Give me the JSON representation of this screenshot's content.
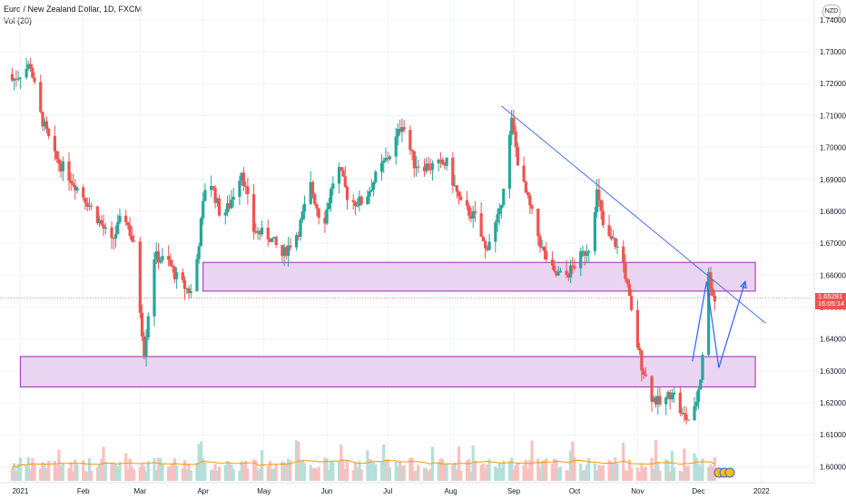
{
  "header": {
    "title": "Euro / New Zealand Dollar, 1D, FXCM",
    "indicator": "Vol (20)"
  },
  "currency_badge": "NZD",
  "last_price": "1.65281",
  "countdown": "16:05:14",
  "colors": {
    "up": "#26a69a",
    "down": "#ef5350",
    "vol_up": "#b5dfd9",
    "vol_down": "#f7c1c0",
    "zone_fill": "#e9d4f1",
    "zone_border": "#9c27b0",
    "trend": "#4a6fe3",
    "projection": "#2962ff",
    "vol_ma": "#ff9800"
  },
  "chart_data": {
    "type": "candlestick",
    "symbol": "EURNZD",
    "ylim": [
      1.595,
      1.7445
    ],
    "y_ticks": [
      "1.74000",
      "1.73000",
      "1.72000",
      "1.71000",
      "1.70000",
      "1.69000",
      "1.68000",
      "1.67000",
      "1.66000",
      "1.65000",
      "1.64000",
      "1.63000",
      "1.62000",
      "1.61000",
      "1.60000"
    ],
    "x_ticks": [
      "2021",
      "Feb",
      "Mar",
      "Apr",
      "May",
      "Jun",
      "Jul",
      "Aug",
      "Sep",
      "Oct",
      "Nov",
      "Dec",
      "2022"
    ],
    "grid": true,
    "anchors": [
      [
        "2020-12-28",
        1.721
      ],
      [
        "2021-01-06",
        1.726
      ],
      [
        "2021-01-10",
        1.712
      ],
      [
        "2021-01-18",
        1.697
      ],
      [
        "2021-01-24",
        1.692
      ],
      [
        "2021-02-02",
        1.684
      ],
      [
        "2021-02-08",
        1.678
      ],
      [
        "2021-02-15",
        1.67
      ],
      [
        "2021-02-21",
        1.68
      ],
      [
        "2021-02-26",
        1.669
      ],
      [
        "2021-03-03",
        1.636
      ],
      [
        "2021-03-08",
        1.666
      ],
      [
        "2021-03-15",
        1.664
      ],
      [
        "2021-03-20",
        1.658
      ],
      [
        "2021-03-27",
        1.654
      ],
      [
        "2021-04-03",
        1.693
      ],
      [
        "2021-04-10",
        1.678
      ],
      [
        "2021-04-14",
        1.682
      ],
      [
        "2021-04-20",
        1.693
      ],
      [
        "2021-04-26",
        1.674
      ],
      [
        "2021-05-04",
        1.672
      ],
      [
        "2021-05-10",
        1.666
      ],
      [
        "2021-05-18",
        1.674
      ],
      [
        "2021-05-24",
        1.688
      ],
      [
        "2021-05-30",
        1.675
      ],
      [
        "2021-06-06",
        1.695
      ],
      [
        "2021-06-12",
        1.683
      ],
      [
        "2021-06-19",
        1.683
      ],
      [
        "2021-06-26",
        1.692
      ],
      [
        "2021-07-03",
        1.699
      ],
      [
        "2021-07-08",
        1.708
      ],
      [
        "2021-07-14",
        1.695
      ],
      [
        "2021-07-22",
        1.694
      ],
      [
        "2021-07-30",
        1.695
      ],
      [
        "2021-08-06",
        1.682
      ],
      [
        "2021-08-13",
        1.678
      ],
      [
        "2021-08-18",
        1.668
      ],
      [
        "2021-08-25",
        1.679
      ],
      [
        "2021-08-31",
        1.708
      ],
      [
        "2021-09-04",
        1.692
      ],
      [
        "2021-09-10",
        1.679
      ],
      [
        "2021-09-15",
        1.668
      ],
      [
        "2021-09-21",
        1.66
      ],
      [
        "2021-09-27",
        1.66
      ],
      [
        "2021-10-02",
        1.664
      ],
      [
        "2021-10-08",
        1.669
      ],
      [
        "2021-10-12",
        1.686
      ],
      [
        "2021-10-16",
        1.672
      ],
      [
        "2021-10-21",
        1.67
      ],
      [
        "2021-10-25",
        1.664
      ],
      [
        "2021-10-30",
        1.644
      ],
      [
        "2021-11-03",
        1.632
      ],
      [
        "2021-11-08",
        1.622
      ],
      [
        "2021-11-13",
        1.619
      ],
      [
        "2021-11-18",
        1.624
      ],
      [
        "2021-11-23",
        1.616
      ],
      [
        "2021-11-28",
        1.614
      ],
      [
        "2021-12-02",
        1.628
      ],
      [
        "2021-12-06",
        1.66
      ],
      [
        "2021-12-09",
        1.652
      ]
    ],
    "overlays": {
      "trend_line": [
        [
          "2021-08-26",
          1.713
        ],
        [
          "2022-01-03",
          1.645
        ]
      ],
      "zones": [
        {
          "from": "2021-04-01",
          "to": "2021-12-29",
          "low": 1.655,
          "high": 1.664
        },
        {
          "from": "2021-01-01",
          "to": "2021-12-29",
          "low": 1.625,
          "high": 1.6345
        }
      ],
      "projection": [
        [
          "2021-11-28",
          1.633
        ],
        [
          "2021-12-05",
          1.658
        ],
        [
          "2021-12-11",
          1.631
        ],
        [
          "2021-12-24",
          1.658
        ]
      ]
    }
  }
}
